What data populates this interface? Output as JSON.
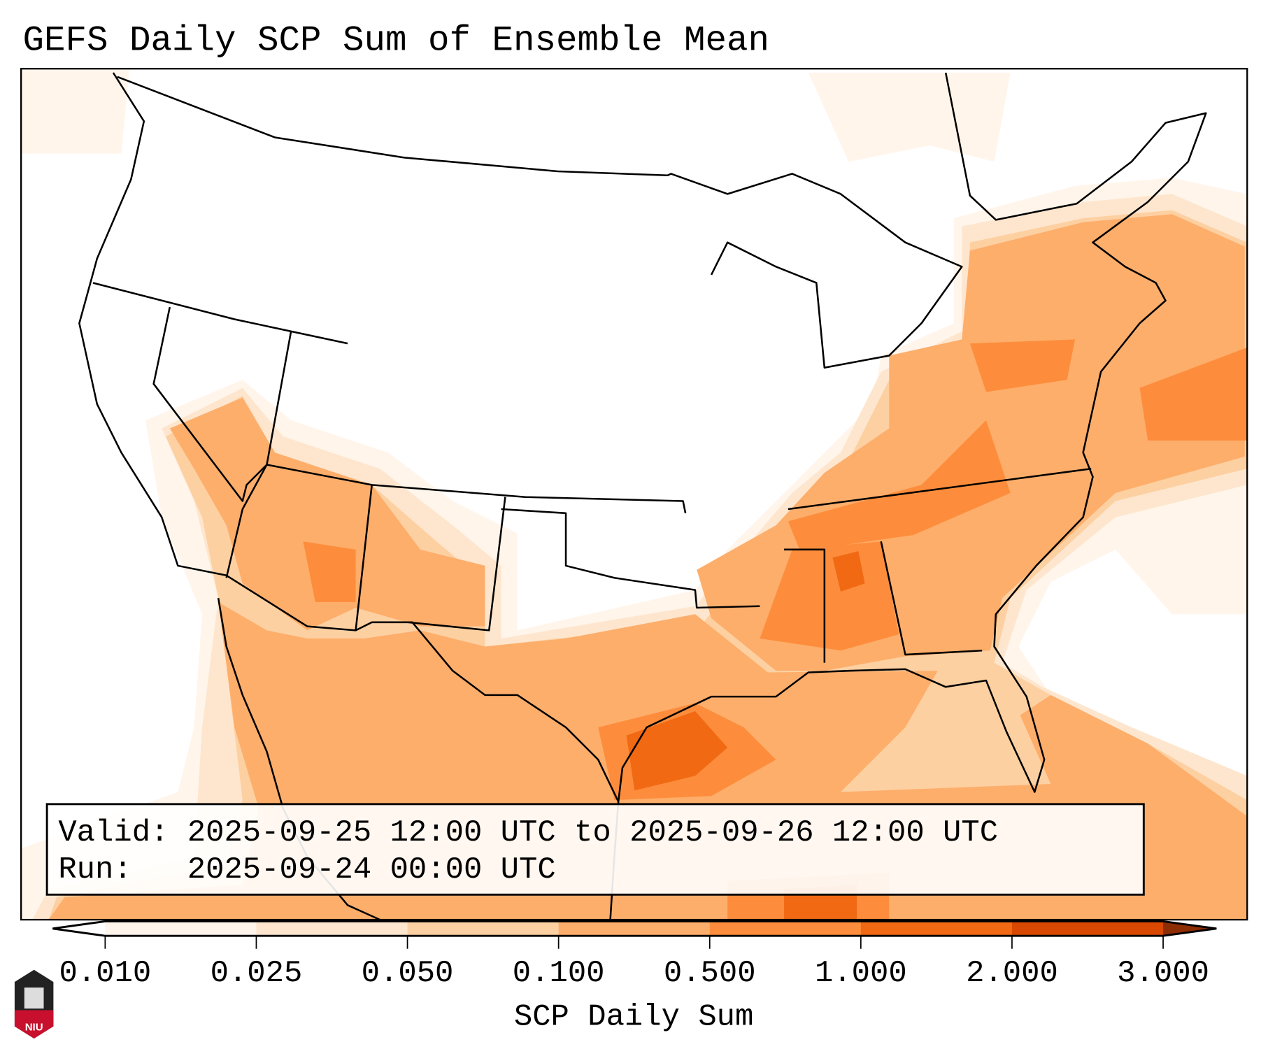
{
  "title": "GEFS Daily SCP Sum of Ensemble Mean",
  "info": {
    "valid_line": "Valid: 2025-09-25 12:00 UTC to 2025-09-26 12:00 UTC",
    "run_line": "Run:   2025-09-24 00:00 UTC"
  },
  "colorbar": {
    "label": "SCP Daily Sum",
    "ticks": [
      "0.010",
      "0.025",
      "0.050",
      "0.100",
      "0.500",
      "1.000",
      "2.000",
      "3.000"
    ],
    "under_color": "#ffffff",
    "colors": [
      "#fff5eb",
      "#fee6ce",
      "#fdd0a2",
      "#fdae6b",
      "#fd8d3c",
      "#f16913",
      "#d94801"
    ],
    "over_color": "#8c2d04"
  },
  "logo": {
    "text": "NIU"
  }
}
